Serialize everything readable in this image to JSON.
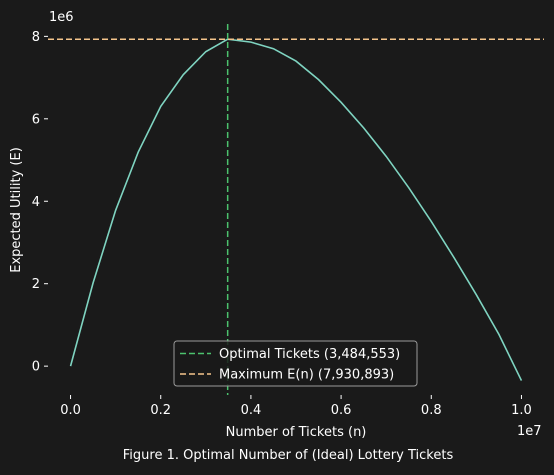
{
  "caption": "Figure 1. Optimal Number of (Ideal) Lottery Tickets",
  "chart_data": {
    "type": "line",
    "title": "",
    "xlabel": "Number of Tickets (n)",
    "ylabel": "Expected Utility (E)",
    "x_offset_label": "1e7",
    "y_offset_label": "1e6",
    "xlim": [
      -0.05,
      1.05
    ],
    "ylim": [
      -0.7,
      8.3
    ],
    "xticks": [
      0.0,
      0.2,
      0.4,
      0.6,
      0.8,
      1.0
    ],
    "xtick_labels": [
      "0.0",
      "0.2",
      "0.4",
      "0.6",
      "0.8",
      "1.0"
    ],
    "yticks": [
      0,
      2,
      4,
      6,
      8
    ],
    "ytick_labels": [
      "0",
      "2",
      "4",
      "6",
      "8"
    ],
    "grid": false,
    "legend_placement": "lower center",
    "colors": {
      "background": "#1a1a1a",
      "curve": "#7fd4c1",
      "optimal_line": "#4cc26e",
      "maximum_line": "#f5c58c",
      "text": "#ffffff",
      "legend_border": "#9a9a9a"
    },
    "series": [
      {
        "style": "solid",
        "color": "#7fd4c1",
        "x": [
          0.0,
          0.05,
          0.1,
          0.15,
          0.2,
          0.25,
          0.3,
          0.3484553,
          0.4,
          0.45,
          0.5,
          0.55,
          0.6,
          0.65,
          0.7,
          0.75,
          0.8,
          0.85,
          0.9,
          0.95,
          1.0
        ],
        "y": [
          0.0,
          2.02,
          3.78,
          5.19,
          6.3,
          7.07,
          7.63,
          7.930893,
          7.86,
          7.7,
          7.4,
          6.95,
          6.4,
          5.78,
          5.09,
          4.33,
          3.51,
          2.64,
          1.73,
          0.77,
          -0.35
        ]
      }
    ],
    "reference_lines": [
      {
        "orientation": "vertical",
        "value": 0.3484553,
        "label": "Optimal Tickets (3,484,553)",
        "color": "#4cc26e",
        "style": "dashed"
      },
      {
        "orientation": "horizontal",
        "value": 7.930893,
        "label": "Maximum E(n) (7,930,893)",
        "color": "#f5c58c",
        "style": "dashed"
      }
    ]
  }
}
